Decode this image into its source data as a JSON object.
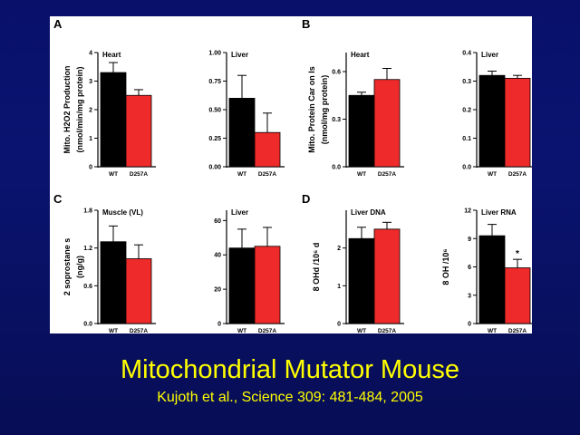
{
  "slide": {
    "title": "Mitochondrial Mutator Mouse",
    "citation": "Kujoth et al., Science 309: 481-484, 2005"
  },
  "colors": {
    "wt": "#000000",
    "d257a": "#ee2a2a",
    "axis": "#000000"
  },
  "chart_data": [
    {
      "type": "bar",
      "panel": "A",
      "subtitle": "Heart",
      "ylabel": [
        "Mito. H2O2 Production",
        "(nmol/min/mg protein)"
      ],
      "categories": [
        "WT",
        "D257A"
      ],
      "values": [
        3.3,
        2.5
      ],
      "errors": [
        0.35,
        0.2
      ],
      "ylim": [
        0,
        4
      ],
      "ticks": [
        "0",
        "1",
        "2",
        "3",
        "4"
      ],
      "significance": ""
    },
    {
      "type": "bar",
      "panel": "",
      "subtitle": "Liver",
      "ylabel": [],
      "categories": [
        "WT",
        "D257A"
      ],
      "values": [
        0.6,
        0.3
      ],
      "errors": [
        0.2,
        0.17
      ],
      "ylim": [
        0,
        1
      ],
      "ticks": [
        "0.00",
        "0.25",
        "0.50",
        "0.75",
        "1.00"
      ],
      "significance": ""
    },
    {
      "type": "bar",
      "panel": "B",
      "subtitle": "Heart",
      "ylabel": [
        "Mito. Protein Car on ls",
        "(nmol/mg protein)"
      ],
      "categories": [
        "WT",
        "D257A"
      ],
      "values": [
        0.45,
        0.55
      ],
      "errors": [
        0.02,
        0.07
      ],
      "ylim": [
        0,
        0.72
      ],
      "ticks": [
        "0.0",
        "0.3",
        "0.6"
      ],
      "significance": ""
    },
    {
      "type": "bar",
      "panel": "",
      "subtitle": "Liver",
      "ylabel": [],
      "categories": [
        "WT",
        "D257A"
      ],
      "values": [
        0.32,
        0.31
      ],
      "errors": [
        0.015,
        0.01
      ],
      "ylim": [
        0,
        0.4
      ],
      "ticks": [
        "0.0",
        "0.1",
        "0.2",
        "0.3",
        "0.4"
      ],
      "significance": ""
    },
    {
      "type": "bar",
      "panel": "C",
      "subtitle": "Muscle (VL)",
      "ylabel": [
        "2 soprostane s",
        "(ng/g)"
      ],
      "categories": [
        "WT",
        "D257A"
      ],
      "values": [
        1.3,
        1.03
      ],
      "errors": [
        0.25,
        0.22
      ],
      "ylim": [
        0,
        1.8
      ],
      "ticks": [
        "0.0",
        "0.6",
        "1.2",
        "1.8"
      ],
      "significance": ""
    },
    {
      "type": "bar",
      "panel": "",
      "subtitle": "Liver",
      "ylabel": [],
      "categories": [
        "WT",
        "D257A"
      ],
      "values": [
        44,
        45
      ],
      "errors": [
        11,
        11
      ],
      "ylim": [
        0,
        66
      ],
      "ticks": [
        "0",
        "20",
        "40",
        "60"
      ],
      "significance": ""
    },
    {
      "type": "bar",
      "panel": "D",
      "subtitle": "Liver DNA",
      "ylabel": [
        "8 OHd   /10⁶ d"
      ],
      "categories": [
        "WT",
        "D257A"
      ],
      "values": [
        2.25,
        2.5
      ],
      "errors": [
        0.3,
        0.18
      ],
      "ylim": [
        0,
        3
      ],
      "ticks": [
        "0",
        "1",
        "2"
      ],
      "significance": ""
    },
    {
      "type": "bar",
      "panel": "",
      "subtitle": "Liver RNA",
      "ylabel": [
        "8 OH   /10⁶"
      ],
      "categories": [
        "WT",
        "D257A"
      ],
      "values": [
        9.3,
        5.9
      ],
      "errors": [
        1.2,
        0.9
      ],
      "ylim": [
        0,
        12
      ],
      "ticks": [
        "0",
        "3",
        "6",
        "9",
        "12"
      ],
      "significance": "*"
    }
  ]
}
